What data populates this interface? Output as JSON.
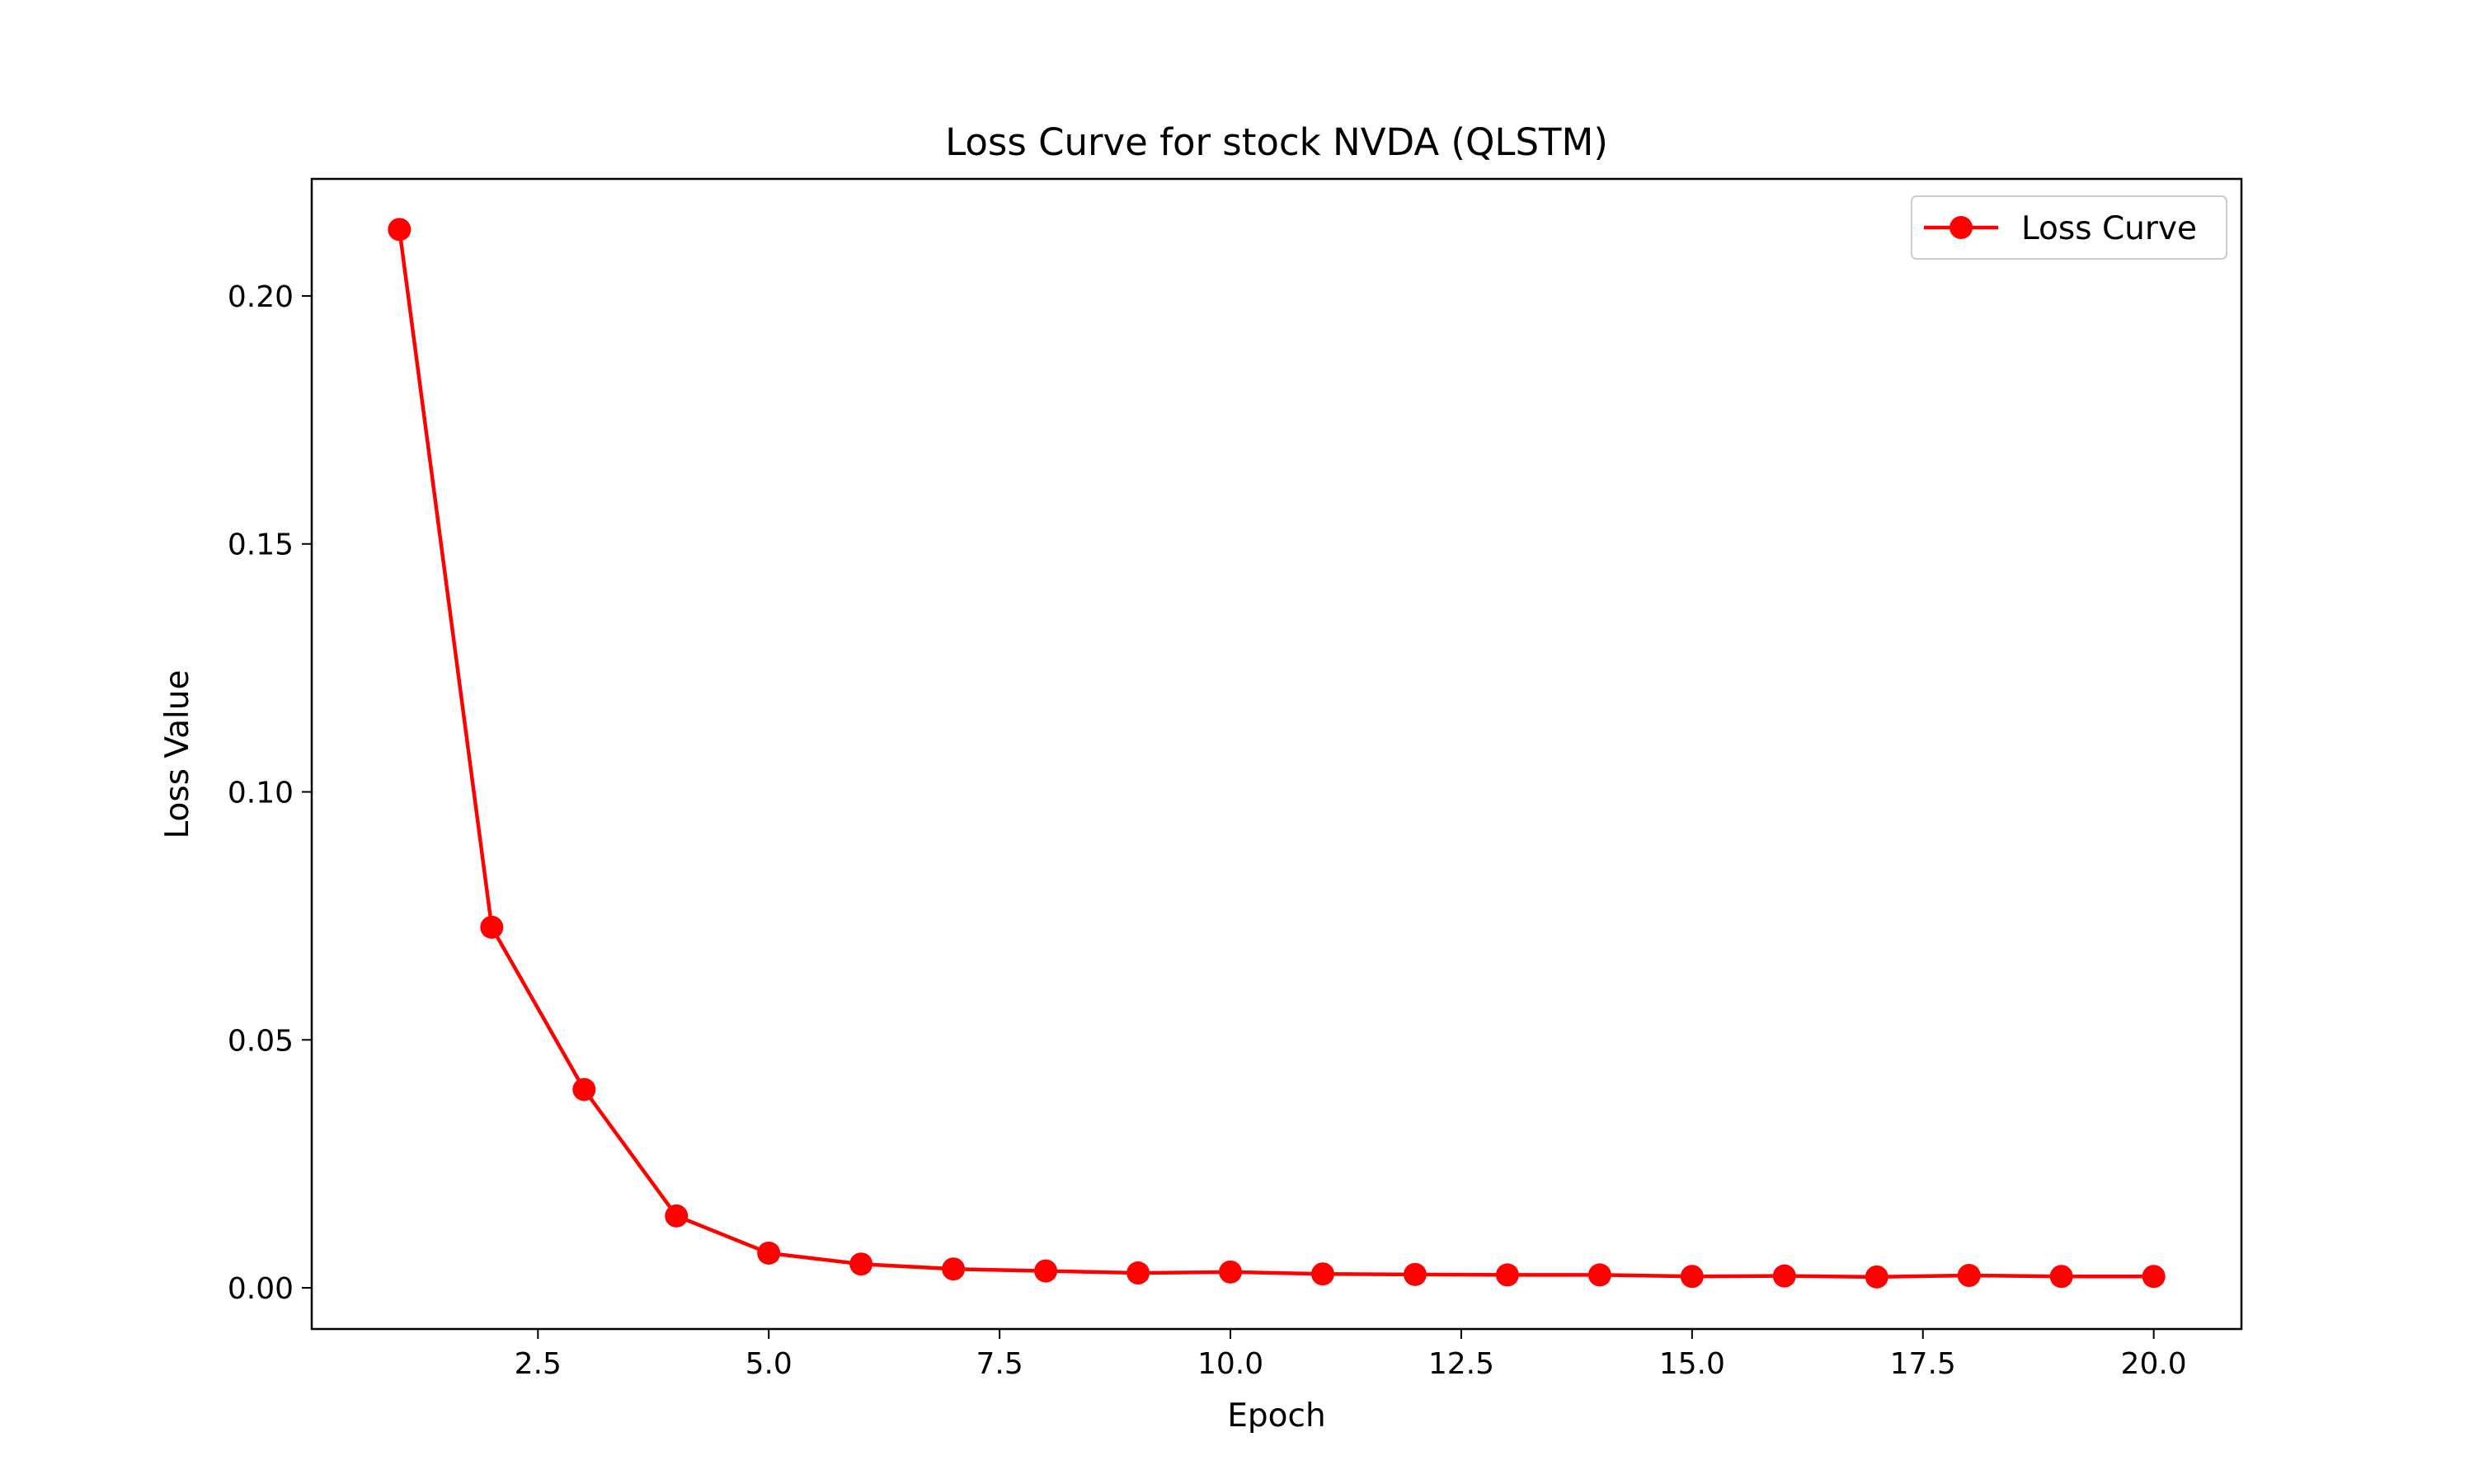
{
  "chart_data": {
    "type": "line",
    "title": "Loss Curve for stock NVDA (QLSTM)",
    "xlabel": "Epoch",
    "ylabel": "Loss Value",
    "xlim": [
      0.05,
      20.95
    ],
    "ylim": [
      -0.0083,
      0.2236
    ],
    "xticks": [
      2.5,
      5.0,
      7.5,
      10.0,
      12.5,
      15.0,
      17.5,
      20.0
    ],
    "xtick_labels": [
      "2.5",
      "5.0",
      "7.5",
      "10.0",
      "12.5",
      "15.0",
      "17.5",
      "20.0"
    ],
    "yticks": [
      0.0,
      0.05,
      0.1,
      0.15,
      0.2
    ],
    "ytick_labels": [
      "0.00",
      "0.05",
      "0.10",
      "0.15",
      "0.20"
    ],
    "grid": false,
    "legend_position": "top-right",
    "series": [
      {
        "name": "Loss Curve",
        "color": "#ff0000",
        "marker": "circle",
        "x": [
          1,
          2,
          3,
          4,
          5,
          6,
          7,
          8,
          9,
          10,
          11,
          12,
          13,
          14,
          15,
          16,
          17,
          18,
          19,
          20
        ],
        "y": [
          0.2134,
          0.0727,
          0.04,
          0.0145,
          0.007,
          0.0048,
          0.0038,
          0.0034,
          0.003,
          0.0032,
          0.0028,
          0.0027,
          0.0026,
          0.0026,
          0.0023,
          0.0024,
          0.0022,
          0.0025,
          0.0023,
          0.0023
        ]
      }
    ]
  }
}
